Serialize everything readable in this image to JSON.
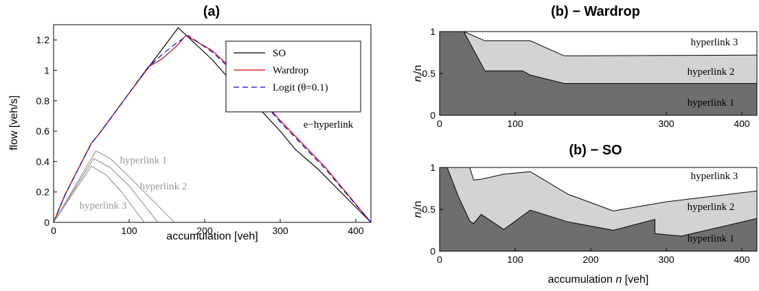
{
  "chart_data": [
    {
      "type": "line",
      "title": "(a)",
      "xlabel": "accumulation [veh]",
      "ylabel": "flow [veh/s]",
      "xlim": [
        0,
        420
      ],
      "ylim": [
        0,
        1.3
      ],
      "xticks": [
        0,
        100,
        200,
        300,
        400
      ],
      "yticks": [
        0,
        0.2,
        0.4,
        0.6,
        0.8,
        1,
        1.2
      ],
      "ytick_labels": [
        "0",
        "0.2",
        "0.4",
        "0.6",
        "0.8",
        "1",
        "1.2"
      ],
      "legend_position": "top-right",
      "series": [
        {
          "name": "SO",
          "color": "#000000",
          "dash": "solid",
          "points": [
            [
              0,
              0
            ],
            [
              15,
              0.18
            ],
            [
              50,
              0.52
            ],
            [
              60,
              0.58
            ],
            [
              100,
              0.85
            ],
            [
              165,
              1.28
            ],
            [
              210,
              1.07
            ],
            [
              240,
              0.9
            ],
            [
              270,
              0.76
            ],
            [
              300,
              0.6
            ],
            [
              320,
              0.48
            ],
            [
              350,
              0.35
            ],
            [
              420,
              0
            ]
          ]
        },
        {
          "name": "Wardrop",
          "color": "#e00000",
          "dash": "solid",
          "points": [
            [
              0,
              0
            ],
            [
              15,
              0.18
            ],
            [
              50,
              0.52
            ],
            [
              60,
              0.58
            ],
            [
              100,
              0.85
            ],
            [
              125,
              1.02
            ],
            [
              145,
              1.08
            ],
            [
              165,
              1.17
            ],
            [
              175,
              1.23
            ],
            [
              210,
              1.13
            ],
            [
              260,
              0.9
            ],
            [
              300,
              0.67
            ],
            [
              360,
              0.36
            ],
            [
              420,
              0
            ]
          ]
        },
        {
          "name": "Logit (θ=0.1)",
          "color": "#0000dd",
          "dash": "dashed",
          "points": [
            [
              0,
              0
            ],
            [
              15,
              0.18
            ],
            [
              50,
              0.52
            ],
            [
              60,
              0.58
            ],
            [
              100,
              0.85
            ],
            [
              125,
              1.02
            ],
            [
              145,
              1.11
            ],
            [
              160,
              1.17
            ],
            [
              178,
              1.23
            ],
            [
              210,
              1.12
            ],
            [
              260,
              0.89
            ],
            [
              300,
              0.66
            ],
            [
              360,
              0.35
            ],
            [
              420,
              0
            ]
          ]
        },
        {
          "name": "hyperlink 1",
          "color": "#999999",
          "dash": "solid",
          "points": [
            [
              0,
              0
            ],
            [
              56,
              0.47
            ],
            [
              75,
              0.42
            ],
            [
              100,
              0.3
            ],
            [
              160,
              0
            ]
          ]
        },
        {
          "name": "hyperlink 2",
          "color": "#999999",
          "dash": "solid",
          "points": [
            [
              0,
              0
            ],
            [
              53,
              0.42
            ],
            [
              75,
              0.36
            ],
            [
              100,
              0.24
            ],
            [
              138,
              0
            ]
          ]
        },
        {
          "name": "hyperlink 3",
          "color": "#999999",
          "dash": "solid",
          "points": [
            [
              0,
              0
            ],
            [
              50,
              0.37
            ],
            [
              70,
              0.31
            ],
            [
              90,
              0.2
            ],
            [
              120,
              0
            ]
          ]
        }
      ],
      "annotations": {
        "e_hyperlink": "e−hyperlink",
        "hyperlink1": "hyperlink 1",
        "hyperlink2": "hyperlink 2",
        "hyperlink3": "hyperlink 3"
      }
    },
    {
      "type": "area",
      "title": "(b) − Wardrop",
      "ylabel_main": "n",
      "ylabel_sub": "i",
      "ylabel_tail": "/n",
      "xlim": [
        0,
        420
      ],
      "ylim": [
        0,
        1
      ],
      "xticks": [
        0,
        100,
        300,
        400
      ],
      "yticks": [
        0,
        0.5,
        1
      ],
      "ytick_labels": [
        "0",
        "0.5",
        "1"
      ],
      "fill_colors": [
        "#6e6e6e",
        "#d3d3d3",
        "#ffffff"
      ],
      "boundary_lower": [
        [
          0,
          1
        ],
        [
          32,
          1
        ],
        [
          60,
          0.53
        ],
        [
          110,
          0.53
        ],
        [
          120,
          0.48
        ],
        [
          165,
          0.38
        ],
        [
          420,
          0.38
        ]
      ],
      "boundary_upper": [
        [
          0,
          1
        ],
        [
          32,
          1
        ],
        [
          60,
          0.89
        ],
        [
          120,
          0.89
        ],
        [
          165,
          0.71
        ],
        [
          420,
          0.72
        ]
      ],
      "labels": {
        "hyperlink1": "hyperlink 1",
        "hyperlink2": "hyperlink 2",
        "hyperlink3": "hyperlink 3"
      }
    },
    {
      "type": "area",
      "title": "(b) − SO",
      "xlabel_main": "accumulation ",
      "xlabel_italic": "n",
      "xlabel_tail": " [veh]",
      "ylabel_main": "n",
      "ylabel_sub": "i",
      "ylabel_tail": "/n",
      "xlim": [
        0,
        420
      ],
      "ylim": [
        0,
        1
      ],
      "xticks": [
        0,
        100,
        200,
        300,
        400
      ],
      "yticks": [
        0,
        0.5,
        1
      ],
      "ytick_labels": [
        "0",
        "0.5",
        "1"
      ],
      "fill_colors": [
        "#6e6e6e",
        "#d3d3d3",
        "#ffffff"
      ],
      "boundary_lower": [
        [
          0,
          1
        ],
        [
          10,
          1
        ],
        [
          25,
          0.65
        ],
        [
          40,
          0.36
        ],
        [
          45,
          0.33
        ],
        [
          55,
          0.44
        ],
        [
          85,
          0.26
        ],
        [
          120,
          0.49
        ],
        [
          170,
          0.35
        ],
        [
          230,
          0.25
        ],
        [
          285,
          0.38
        ],
        [
          285,
          0.21
        ],
        [
          320,
          0.18
        ],
        [
          420,
          0.39
        ]
      ],
      "boundary_upper": [
        [
          0,
          1
        ],
        [
          10,
          1
        ],
        [
          40,
          1
        ],
        [
          45,
          0.85
        ],
        [
          55,
          0.86
        ],
        [
          85,
          0.92
        ],
        [
          120,
          0.95
        ],
        [
          170,
          0.68
        ],
        [
          230,
          0.48
        ],
        [
          300,
          0.59
        ],
        [
          420,
          0.72
        ]
      ],
      "labels": {
        "hyperlink1": "hyperlink 1",
        "hyperlink2": "hyperlink 2",
        "hyperlink3": "hyperlink 3"
      }
    }
  ]
}
